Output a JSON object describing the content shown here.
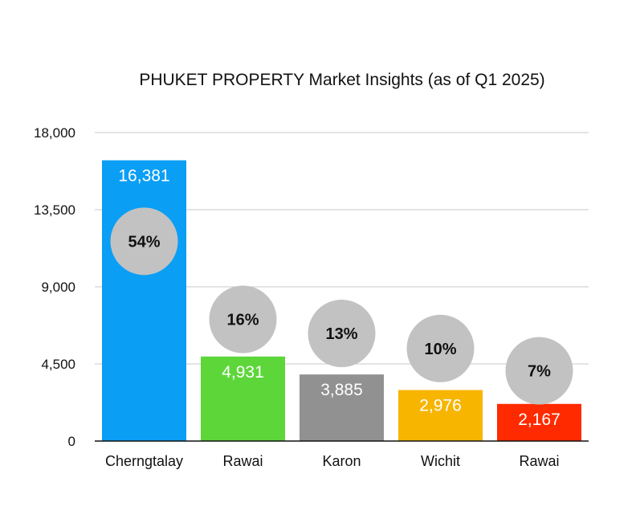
{
  "chart_data": {
    "type": "bar",
    "title": "PHUKET PROPERTY Market Insights (as of Q1 2025)",
    "xlabel": "",
    "ylabel": "",
    "ylim": [
      0,
      18000
    ],
    "yticks": [
      0,
      4500,
      9000,
      13500,
      18000
    ],
    "ytick_labels": [
      "0",
      "4,500",
      "9,000",
      "13,500",
      "18,000"
    ],
    "grid": true,
    "categories": [
      "Cherngtalay",
      "Rawai",
      "Karon",
      "Wichit",
      "Rawai"
    ],
    "values": [
      16381,
      4931,
      3885,
      2976,
      2167
    ],
    "value_labels": [
      "16,381",
      "4,931",
      "3,885",
      "2,976",
      "2,167"
    ],
    "percent_labels": [
      "54%",
      "16%",
      "13%",
      "10%",
      "7%"
    ],
    "percent_bubble_y": [
      11655,
      7100,
      6280,
      5400,
      4100
    ],
    "colors": [
      "#0A9EF5",
      "#5DD63A",
      "#919191",
      "#F7B500",
      "#FF2A00"
    ],
    "bubble_color": "#C2C2C2"
  }
}
